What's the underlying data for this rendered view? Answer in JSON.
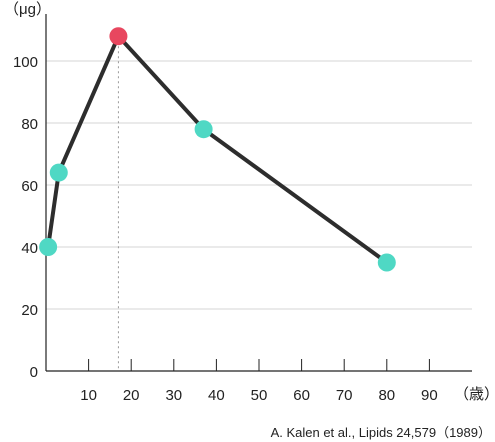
{
  "chart_data": {
    "type": "line",
    "y_unit_label": "（μg）",
    "x_unit_label": "（歳）",
    "source_note": "A. Kalen et al., Lipids 24,579（1989）",
    "xlim": [
      0,
      100
    ],
    "ylim": [
      0,
      110
    ],
    "x_ticks": [
      10,
      20,
      30,
      40,
      50,
      60,
      70,
      80,
      90
    ],
    "y_ticks": [
      0,
      20,
      40,
      60,
      80,
      100
    ],
    "grid": "horizontal",
    "reference_line_x": 17,
    "series": [
      {
        "points": [
          {
            "x": 0.5,
            "y": 40
          },
          {
            "x": 3,
            "y": 64
          },
          {
            "x": 17,
            "y": 108,
            "highlight": true
          },
          {
            "x": 37,
            "y": 78
          },
          {
            "x": 80,
            "y": 35
          }
        ]
      }
    ],
    "colors": {
      "line": "#2d2d2d",
      "point": "#4fd8c4",
      "highlight": "#e8475f",
      "grid": "#d6d6d6",
      "axis": "#222222",
      "reference": "#9a9a9a"
    }
  }
}
